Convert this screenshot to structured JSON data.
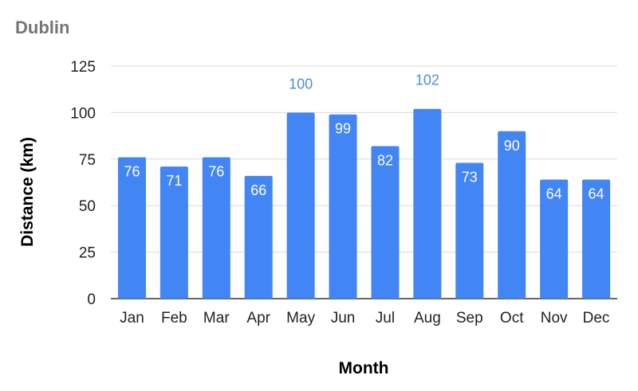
{
  "chart_data": {
    "type": "bar",
    "title": "Dublin",
    "xlabel": "Month",
    "ylabel": "Distance (km)",
    "categories": [
      "Jan",
      "Feb",
      "Mar",
      "Apr",
      "May",
      "Jun",
      "Jul",
      "Aug",
      "Sep",
      "Oct",
      "Nov",
      "Dec"
    ],
    "values": [
      76,
      71,
      76,
      66,
      100,
      99,
      82,
      102,
      73,
      90,
      64,
      64
    ],
    "ylim": [
      0,
      125
    ],
    "yticks": [
      0,
      25,
      50,
      75,
      100,
      125
    ],
    "grid": true,
    "legend": "none",
    "colors": {
      "bar": "#4285f4",
      "label_inside": "#ffffff",
      "label_outside": "#4a90d9",
      "grid": "#d9d9d9",
      "title": "#757575"
    }
  }
}
